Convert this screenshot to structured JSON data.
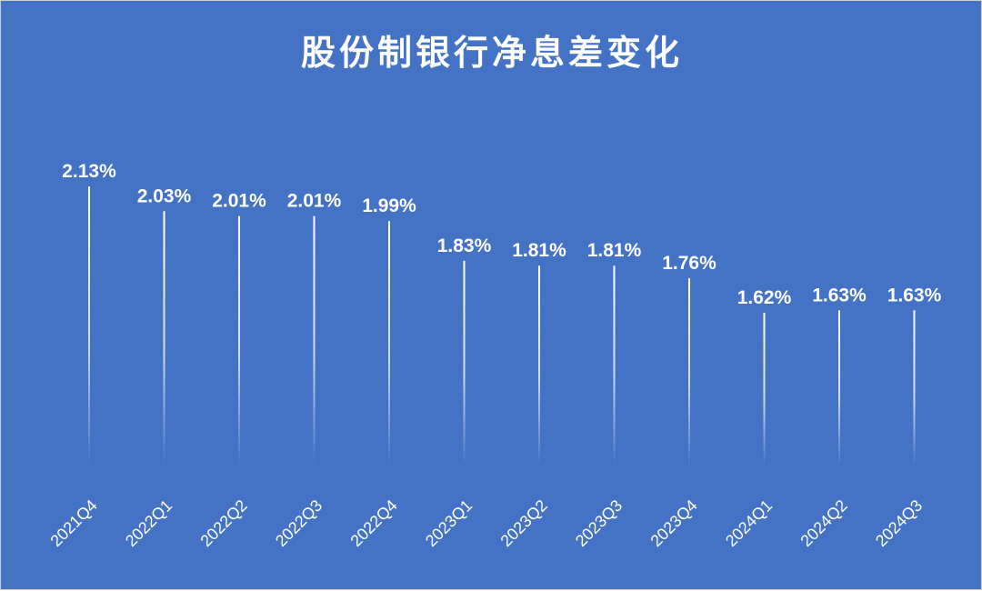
{
  "chart_data": {
    "type": "bar",
    "title": "股份制银行净息差变化",
    "categories": [
      "2021Q4",
      "2022Q1",
      "2022Q2",
      "2022Q3",
      "2022Q4",
      "2023Q1",
      "2023Q2",
      "2023Q3",
      "2023Q4",
      "2024Q1",
      "2024Q2",
      "2024Q3"
    ],
    "values": [
      2.13,
      2.03,
      2.01,
      2.01,
      1.99,
      1.83,
      1.81,
      1.81,
      1.76,
      1.62,
      1.63,
      1.63
    ],
    "value_labels": [
      "2.13%",
      "2.03%",
      "2.01%",
      "2.01%",
      "1.99%",
      "1.83%",
      "1.81%",
      "1.81%",
      "1.76%",
      "1.62%",
      "1.63%",
      "1.63%"
    ],
    "xlabel": "",
    "ylabel": "",
    "ylim": [
      0,
      2.13
    ],
    "grid": false,
    "legend": "none",
    "colors": {
      "background": "#4472c4",
      "bar": "#ffffff",
      "text": "#ffffff"
    }
  }
}
